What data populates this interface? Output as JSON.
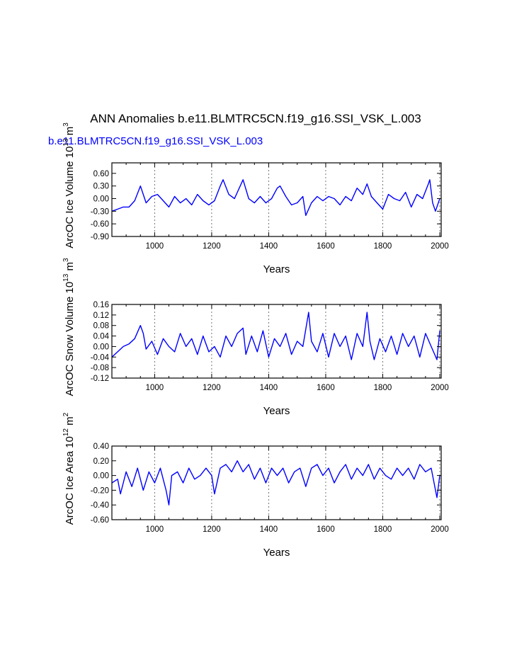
{
  "figure": {
    "title": "ANN Anomalies b.e11.BLMTRC5CN.f19_g16.SSI_VSK_L.003",
    "case_label": "b.e11.BLMTRC5CN.f19_g16.SSI_VSK_L.003",
    "case_label_color": "#0000ff",
    "line_color": "#0000ff"
  },
  "chart_data": [
    {
      "type": "line",
      "name": "ice-volume",
      "title": "",
      "xlabel": "Years",
      "ylabel": "ArcOC Ice Volume 10",
      "ylabel_exp": "13",
      "ylabel_unit": " m",
      "ylabel_unit_exp": "3",
      "xlim": [
        850,
        2005
      ],
      "ylim": [
        -0.9,
        0.85
      ],
      "xticks": [
        1000,
        1200,
        1400,
        1600,
        1800,
        2000
      ],
      "yticks": [
        -0.9,
        -0.6,
        -0.3,
        0.0,
        0.3,
        0.6
      ],
      "ytick_labels": [
        "-0.90",
        "-0.60",
        "-0.30",
        "0.00",
        "0.30",
        "0.60"
      ],
      "grid": "dashed vertical at x ticks",
      "x": [
        850,
        870,
        890,
        910,
        930,
        950,
        960,
        970,
        990,
        1010,
        1030,
        1050,
        1070,
        1090,
        1110,
        1130,
        1150,
        1170,
        1190,
        1210,
        1230,
        1240,
        1260,
        1280,
        1300,
        1310,
        1330,
        1350,
        1370,
        1390,
        1410,
        1430,
        1440,
        1460,
        1480,
        1500,
        1520,
        1530,
        1550,
        1570,
        1590,
        1610,
        1630,
        1650,
        1670,
        1690,
        1710,
        1730,
        1745,
        1760,
        1780,
        1800,
        1820,
        1840,
        1860,
        1880,
        1900,
        1920,
        1940,
        1960,
        1965,
        1975,
        1985,
        2000
      ],
      "y": [
        -0.3,
        -0.25,
        -0.2,
        -0.2,
        -0.05,
        0.3,
        0.1,
        -0.1,
        0.05,
        0.1,
        -0.05,
        -0.2,
        0.05,
        -0.1,
        0.0,
        -0.15,
        0.1,
        -0.05,
        -0.15,
        -0.05,
        0.3,
        0.45,
        0.1,
        0.0,
        0.3,
        0.45,
        0.0,
        -0.1,
        0.05,
        -0.1,
        0.0,
        0.25,
        0.3,
        0.05,
        -0.15,
        -0.1,
        0.05,
        -0.4,
        -0.1,
        0.05,
        -0.05,
        0.05,
        0.0,
        -0.15,
        0.05,
        -0.05,
        0.25,
        0.1,
        0.35,
        0.05,
        -0.1,
        -0.25,
        0.1,
        0.0,
        -0.05,
        0.15,
        -0.2,
        0.1,
        0.0,
        0.35,
        0.45,
        -0.1,
        -0.3,
        0.0
      ]
    },
    {
      "type": "line",
      "name": "snow-volume",
      "title": "",
      "xlabel": "Years",
      "ylabel": "ArcOC Snow Volume 10",
      "ylabel_exp": "13",
      "ylabel_unit": " m",
      "ylabel_unit_exp": "3",
      "xlim": [
        850,
        2005
      ],
      "ylim": [
        -0.12,
        0.16
      ],
      "xticks": [
        1000,
        1200,
        1400,
        1600,
        1800,
        2000
      ],
      "yticks": [
        -0.12,
        -0.08,
        -0.04,
        0.0,
        0.04,
        0.08,
        0.12,
        0.16
      ],
      "ytick_labels": [
        "-0.12",
        "-0.08",
        "-0.04",
        "0.00",
        "0.04",
        "0.08",
        "0.12",
        "0.16"
      ],
      "grid": "dashed vertical at x ticks",
      "x": [
        850,
        870,
        890,
        910,
        930,
        950,
        960,
        970,
        990,
        1010,
        1030,
        1050,
        1070,
        1090,
        1110,
        1130,
        1150,
        1170,
        1190,
        1210,
        1230,
        1250,
        1270,
        1290,
        1310,
        1320,
        1340,
        1360,
        1380,
        1400,
        1420,
        1440,
        1460,
        1480,
        1500,
        1520,
        1540,
        1550,
        1570,
        1590,
        1610,
        1630,
        1650,
        1670,
        1690,
        1710,
        1730,
        1745,
        1755,
        1770,
        1790,
        1810,
        1830,
        1850,
        1870,
        1890,
        1910,
        1930,
        1950,
        1970,
        1990,
        2000
      ],
      "y": [
        -0.04,
        -0.02,
        0.0,
        0.01,
        0.03,
        0.08,
        0.05,
        -0.01,
        0.02,
        -0.03,
        0.03,
        0.0,
        -0.02,
        0.05,
        0.0,
        0.03,
        -0.03,
        0.04,
        -0.02,
        0.0,
        -0.04,
        0.04,
        0.0,
        0.05,
        0.07,
        -0.03,
        0.04,
        -0.02,
        0.06,
        -0.04,
        0.03,
        0.0,
        0.05,
        -0.03,
        0.02,
        0.0,
        0.13,
        0.02,
        -0.02,
        0.05,
        -0.04,
        0.05,
        0.0,
        0.04,
        -0.05,
        0.05,
        0.0,
        0.13,
        0.02,
        -0.05,
        0.03,
        -0.02,
        0.04,
        -0.03,
        0.05,
        0.0,
        0.04,
        -0.04,
        0.05,
        0.0,
        -0.05,
        0.06
      ]
    },
    {
      "type": "line",
      "name": "ice-area",
      "title": "",
      "xlabel": "Years",
      "ylabel": "ArcOC Ice Area 10",
      "ylabel_exp": "12",
      "ylabel_unit": " m",
      "ylabel_unit_exp": "2",
      "xlim": [
        850,
        2005
      ],
      "ylim": [
        -0.6,
        0.4
      ],
      "xticks": [
        1000,
        1200,
        1400,
        1600,
        1800,
        2000
      ],
      "yticks": [
        -0.6,
        -0.4,
        -0.2,
        0.0,
        0.2,
        0.4
      ],
      "ytick_labels": [
        "-0.60",
        "-0.40",
        "-0.20",
        "0.00",
        "0.20",
        "0.40"
      ],
      "grid": "dashed vertical at x ticks",
      "x": [
        850,
        870,
        880,
        900,
        920,
        940,
        960,
        980,
        1000,
        1020,
        1040,
        1050,
        1060,
        1080,
        1100,
        1120,
        1140,
        1160,
        1180,
        1200,
        1210,
        1230,
        1250,
        1270,
        1290,
        1310,
        1330,
        1350,
        1370,
        1390,
        1410,
        1430,
        1450,
        1470,
        1490,
        1510,
        1530,
        1550,
        1570,
        1590,
        1610,
        1630,
        1650,
        1670,
        1690,
        1710,
        1730,
        1750,
        1770,
        1790,
        1810,
        1830,
        1850,
        1870,
        1890,
        1910,
        1930,
        1950,
        1970,
        1990,
        2000
      ],
      "y": [
        -0.1,
        -0.05,
        -0.25,
        0.05,
        -0.15,
        0.1,
        -0.2,
        0.05,
        -0.1,
        0.1,
        -0.2,
        -0.4,
        0.0,
        0.05,
        -0.1,
        0.1,
        -0.05,
        0.0,
        0.1,
        0.0,
        -0.25,
        0.1,
        0.15,
        0.05,
        0.2,
        0.05,
        0.15,
        -0.05,
        0.1,
        -0.1,
        0.1,
        0.0,
        0.1,
        -0.1,
        0.05,
        0.1,
        -0.15,
        0.1,
        0.15,
        0.0,
        0.1,
        -0.1,
        0.05,
        0.15,
        -0.05,
        0.1,
        0.0,
        0.15,
        -0.05,
        0.1,
        0.0,
        -0.05,
        0.1,
        0.0,
        0.1,
        -0.05,
        0.15,
        0.05,
        0.1,
        -0.3,
        0.0
      ]
    }
  ]
}
